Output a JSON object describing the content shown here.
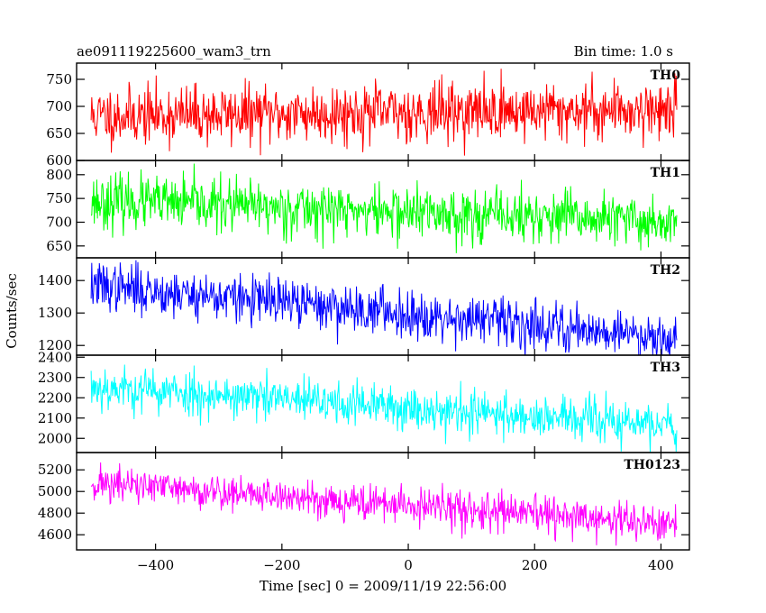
{
  "chart_data": {
    "type": "line",
    "title": "ae091119225600_wam3_trn",
    "bin_time_label": "Bin time: 1.0 s",
    "xlabel": "Time [sec] 0 = 2009/11/19 22:56:00",
    "ylabel": "Counts/sec",
    "xlim": [
      -525,
      445
    ],
    "x_range": [
      -502,
      425
    ],
    "x_step": 1,
    "x_ticks": [
      -400,
      -200,
      0,
      200,
      400
    ],
    "x_tick_labels": [
      "−400",
      "−200",
      "0",
      "200",
      "400"
    ],
    "grid": false,
    "panels": [
      {
        "label": "TH0",
        "color": "#ff0000",
        "ylim": [
          600,
          780
        ],
        "yticks": [
          600,
          650,
          700,
          750
        ],
        "ytick_labels": [
          "600",
          "650",
          "700",
          "750"
        ],
        "trend_start": 682,
        "trend_end": 695,
        "noise": 27,
        "seed": 11
      },
      {
        "label": "TH1",
        "color": "#00ff00",
        "ylim": [
          625,
          830
        ],
        "yticks": [
          650,
          700,
          750,
          800
        ],
        "ytick_labels": [
          "650",
          "700",
          "750",
          "800"
        ],
        "trend_start": 745,
        "trend_end": 700,
        "noise": 28,
        "seed": 23
      },
      {
        "label": "TH2",
        "color": "#0000ff",
        "ylim": [
          1170,
          1470
        ],
        "yticks": [
          1200,
          1300,
          1400
        ],
        "ytick_labels": [
          "1200",
          "1300",
          "1400"
        ],
        "trend_start": 1385,
        "trend_end": 1225,
        "noise": 37,
        "seed": 37
      },
      {
        "label": "TH3",
        "color": "#00ffff",
        "ylim": [
          1930,
          2410
        ],
        "yticks": [
          2000,
          2100,
          2200,
          2300,
          2400
        ],
        "ytick_labels": [
          "2000",
          "2100",
          "2200",
          "2300",
          "2400"
        ],
        "trend_start": 2255,
        "trend_end": 2060,
        "noise": 55,
        "seed": 53
      },
      {
        "label": "TH0123",
        "color": "#ff00ff",
        "ylim": [
          4460,
          5360
        ],
        "yticks": [
          4600,
          4800,
          5000,
          5200
        ],
        "ytick_labels": [
          "4600",
          "4800",
          "5000",
          "5200"
        ],
        "trend_start": 5080,
        "trend_end": 4690,
        "noise": 85,
        "seed": 71
      }
    ]
  }
}
